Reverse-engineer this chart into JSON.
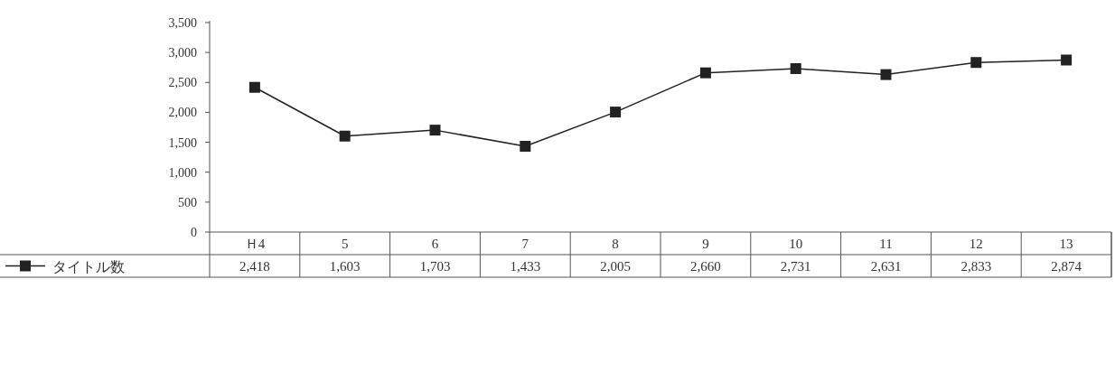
{
  "chart_data": {
    "type": "line",
    "categories": [
      "Ｈ4",
      "5",
      "6",
      "7",
      "8",
      "9",
      "10",
      "11",
      "12",
      "13"
    ],
    "series": [
      {
        "name": "タイトル数",
        "color": "#222222",
        "values": [
          2418,
          1603,
          1703,
          1433,
          2005,
          2660,
          2731,
          2631,
          2833,
          2874
        ],
        "value_labels": [
          "2,418",
          "1,603",
          "1,703",
          "1,433",
          "2,005",
          "2,660",
          "2,731",
          "2,631",
          "2,833",
          "2,874"
        ]
      }
    ],
    "ylim": [
      0,
      3500
    ],
    "yticks": [
      0,
      500,
      {
        "value": 1000,
        "label": "1,000"
      },
      {
        "value": 1500,
        "label": "1,500"
      },
      {
        "value": 2000,
        "label": "2,000"
      },
      {
        "value": 2500,
        "label": "2,500"
      },
      {
        "value": 3000,
        "label": "3,000"
      },
      {
        "value": 3500,
        "label": "3,500"
      }
    ],
    "marker": "square",
    "line_style": "solid",
    "legend": "bottom left",
    "grid": false
  }
}
